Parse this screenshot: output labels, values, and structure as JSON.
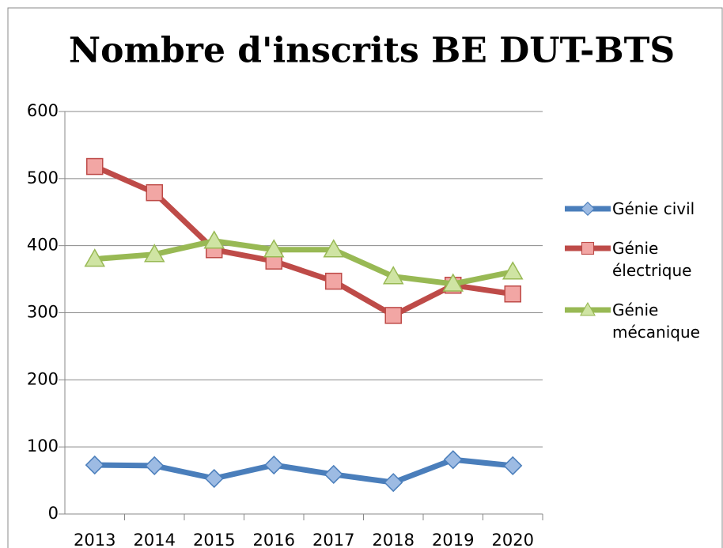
{
  "chart_data": {
    "type": "line",
    "title": "Nombre d'inscrits BE DUT-BTS",
    "categories": [
      "2013",
      "2014",
      "2015",
      "2016",
      "2017",
      "2018",
      "2019",
      "2020"
    ],
    "series": [
      {
        "name": "Génie civil",
        "color": "#4a7ebb",
        "marker": "diamond",
        "values": [
          73,
          72,
          53,
          73,
          59,
          47,
          81,
          72
        ]
      },
      {
        "name": "Génie électrique",
        "color": "#be4b48",
        "marker": "square",
        "values": [
          518,
          479,
          394,
          377,
          347,
          296,
          341,
          328
        ]
      },
      {
        "name": "Génie mécanique",
        "color": "#98b954",
        "marker": "triangle",
        "values": [
          380,
          387,
          407,
          394,
          394,
          354,
          343,
          361
        ]
      }
    ],
    "ylim": [
      0,
      600
    ],
    "yticks": [
      0,
      100,
      200,
      300,
      400,
      500,
      600
    ],
    "grid": true,
    "legend": "right"
  }
}
